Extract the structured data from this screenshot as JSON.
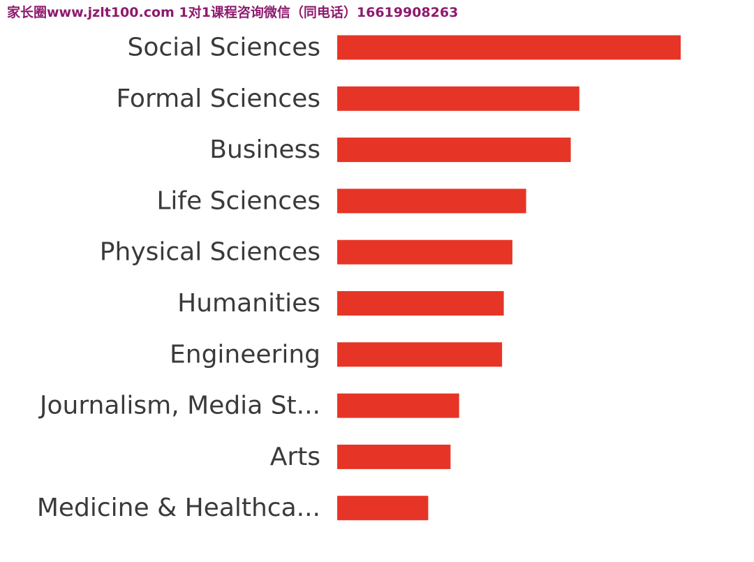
{
  "watermark": {
    "text": "家长圈www.jzlt100.com   1对1课程咨询微信（同电话）16619908263"
  },
  "colors": {
    "bar": "#e63526",
    "label": "#3a3a3a",
    "watermark": "#8e1a6e"
  },
  "chart_data": {
    "type": "bar",
    "orientation": "horizontal",
    "title": "",
    "xlabel": "",
    "ylabel": "",
    "grid": false,
    "legend": "none",
    "value_axis_shown": false,
    "xlim": [
      0,
      100
    ],
    "categories": [
      "Social Sciences",
      "Formal Sciences",
      "Business",
      "Life Sciences",
      "Physical Sciences",
      "Humanities",
      "Engineering",
      "Journalism, Media St...",
      "Arts",
      "Medicine & Healthca..."
    ],
    "values": [
      100,
      70.5,
      68,
      55,
      51,
      48.5,
      48,
      35.5,
      33,
      26.5
    ]
  }
}
